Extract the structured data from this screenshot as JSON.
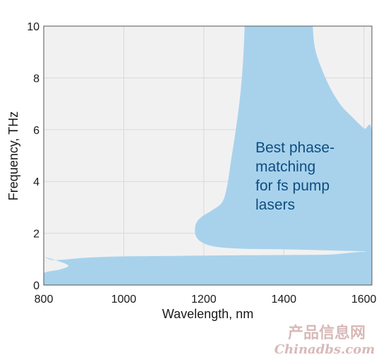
{
  "chart_data": {
    "type": "area",
    "xlabel": "Wavelength, nm",
    "ylabel": "Frequency, THz",
    "xlim": [
      800,
      1620
    ],
    "ylim": [
      0,
      10
    ],
    "xticks": [
      800,
      1000,
      1200,
      1400,
      1600
    ],
    "yticks": [
      0,
      2,
      4,
      6,
      8,
      10
    ],
    "grid": true,
    "annotation": [
      "Best phase-",
      "matching",
      "for fs pump",
      "lasers"
    ],
    "fill_color": "#a8d2ec",
    "plot_background": "#f1f1f2",
    "grid_color": "#d9d9d9",
    "regions": [
      {
        "role": "upper-region",
        "boundary": [
          [
            1302,
            10
          ],
          [
            1300,
            9.2
          ],
          [
            1296,
            8.2
          ],
          [
            1290,
            7.2
          ],
          [
            1280,
            6.0
          ],
          [
            1268,
            4.8
          ],
          [
            1258,
            3.8
          ],
          [
            1246,
            3.2
          ],
          [
            1222,
            2.9
          ],
          [
            1196,
            2.65
          ],
          [
            1183,
            2.45
          ],
          [
            1178,
            2.2
          ],
          [
            1180,
            1.9
          ],
          [
            1195,
            1.65
          ],
          [
            1230,
            1.48
          ],
          [
            1300,
            1.4
          ],
          [
            1400,
            1.38
          ],
          [
            1500,
            1.34
          ],
          [
            1600,
            1.3
          ],
          [
            1620,
            1.29
          ],
          [
            1620,
            5.8
          ],
          [
            1600,
            6.05
          ],
          [
            1570,
            6.5
          ],
          [
            1540,
            7.0
          ],
          [
            1510,
            7.8
          ],
          [
            1480,
            9.0
          ],
          [
            1472,
            10
          ]
        ]
      },
      {
        "role": "lower-band",
        "boundary": [
          [
            800,
            1.1
          ],
          [
            860,
            0.78
          ],
          [
            840,
            0.6
          ],
          [
            800,
            0.45
          ],
          [
            800,
            0
          ],
          [
            1620,
            0
          ],
          [
            1620,
            1.2
          ],
          [
            1500,
            1.17
          ],
          [
            1300,
            1.15
          ],
          [
            1100,
            1.12
          ],
          [
            980,
            1.1
          ],
          [
            900,
            1.05
          ],
          [
            850,
            0.98
          ],
          [
            820,
            0.97
          ],
          [
            800,
            1.1
          ]
        ]
      }
    ]
  },
  "watermark": {
    "line1": "产品信息网",
    "line2": "Chinadbs.com"
  }
}
